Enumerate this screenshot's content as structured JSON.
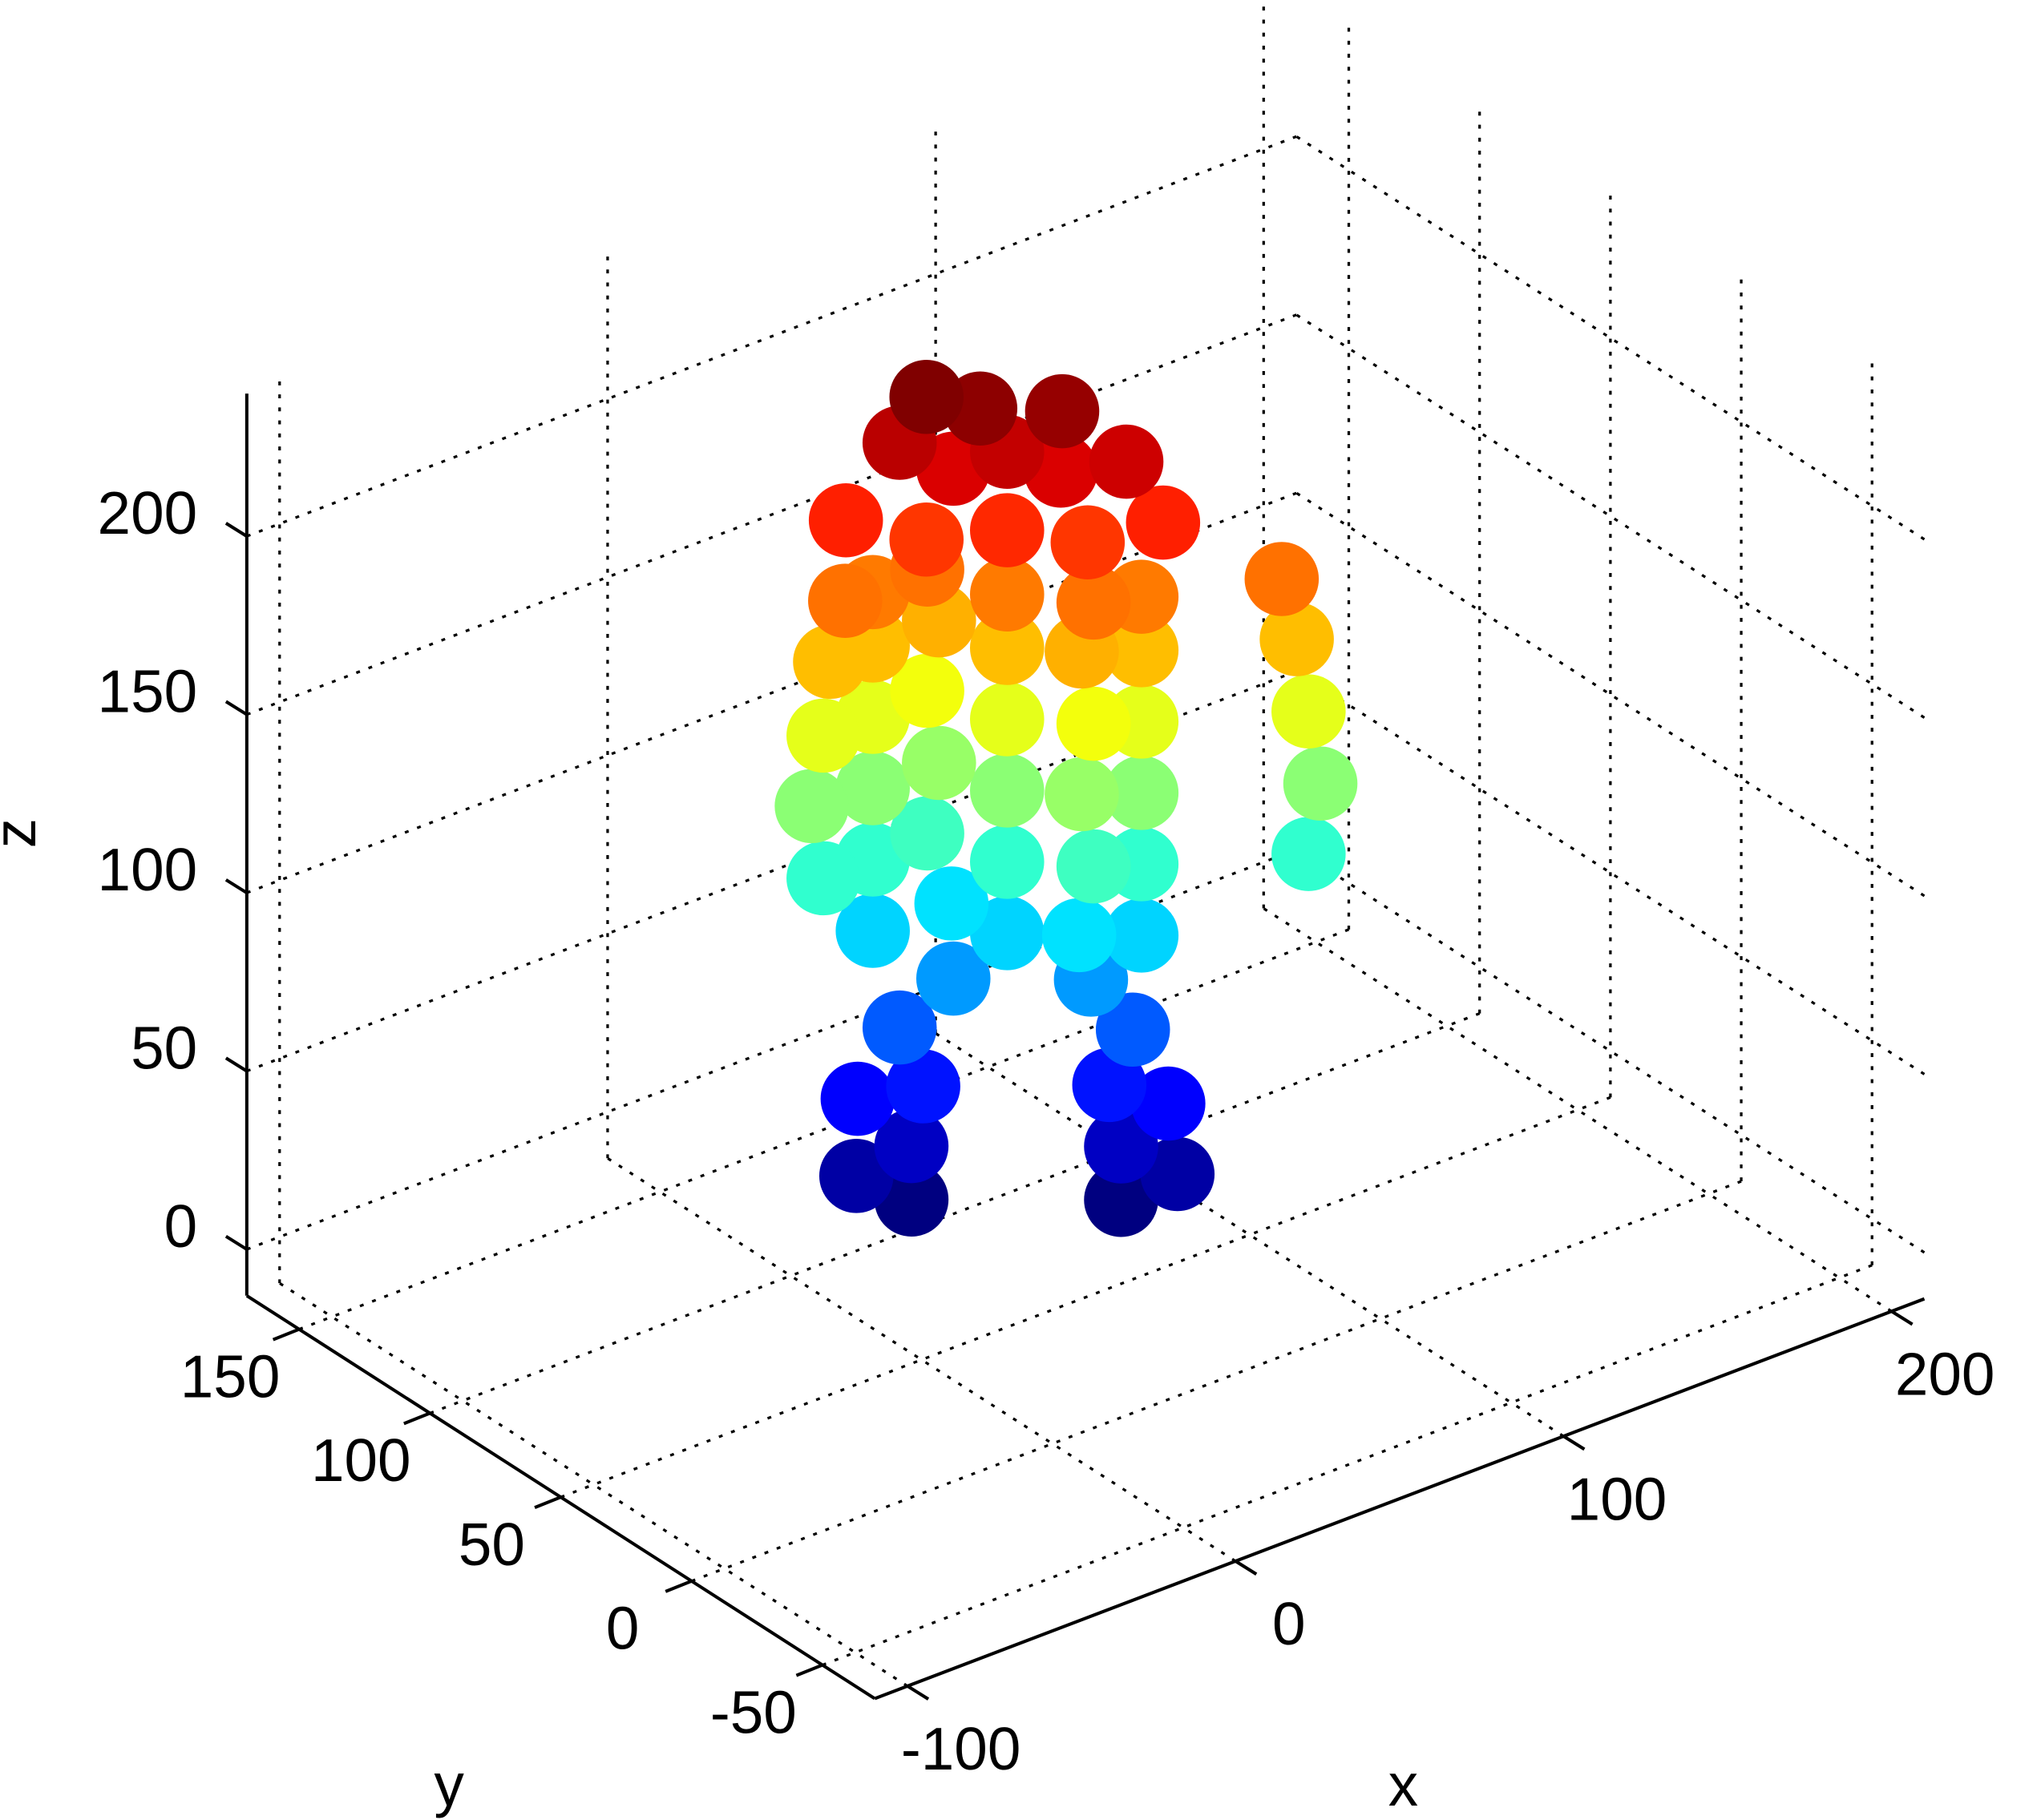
{
  "chart_data": {
    "type": "scatter3",
    "xlabel": "x",
    "ylabel": "y",
    "zlabel": "z",
    "x": [
      32,
      72,
      20,
      82,
      32,
      72,
      22,
      80,
      34,
      70,
      30,
      74,
      40,
      66,
      25,
      50,
      75,
      45,
      60,
      25,
      50,
      75,
      40,
      62,
      10,
      110,
      25,
      50,
      75,
      42,
      60,
      8,
      112,
      25,
      50,
      75,
      40,
      62,
      10,
      110,
      25,
      50,
      75,
      42,
      60,
      12,
      108,
      25,
      50,
      75,
      40,
      62,
      15,
      105,
      35,
      65,
      50,
      80,
      20,
      40,
      60,
      50,
      30,
      72,
      45,
      62,
      35
    ],
    "y": [
      94,
      64,
      100,
      55,
      94,
      64,
      102,
      56,
      92,
      66,
      96,
      62,
      88,
      68,
      100,
      80,
      60,
      95,
      65,
      100,
      80,
      60,
      98,
      62,
      100,
      40,
      100,
      80,
      60,
      96,
      64,
      102,
      38,
      100,
      80,
      60,
      98,
      62,
      100,
      40,
      100,
      80,
      60,
      96,
      64,
      100,
      42,
      100,
      80,
      60,
      98,
      62,
      98,
      44,
      92,
      68,
      80,
      58,
      104,
      88,
      72,
      80,
      96,
      62,
      84,
      74,
      92
    ],
    "z": [
      0,
      0,
      8,
      8,
      15,
      15,
      28,
      28,
      32,
      32,
      48,
      48,
      62,
      62,
      75,
      75,
      75,
      78,
      78,
      95,
      95,
      95,
      98,
      98,
      95,
      95,
      115,
      115,
      115,
      118,
      118,
      115,
      115,
      135,
      135,
      135,
      138,
      138,
      135,
      135,
      155,
      155,
      155,
      158,
      158,
      155,
      155,
      170,
      170,
      170,
      172,
      172,
      172,
      172,
      185,
      185,
      188,
      190,
      190,
      205,
      205,
      210,
      212,
      208,
      222,
      220,
      225
    ],
    "colormap": "jet",
    "xlim": [
      -110,
      210
    ],
    "ylim": [
      -70,
      170
    ],
    "zlim": [
      -13,
      240
    ],
    "xticks": [
      -100,
      0,
      100,
      200
    ],
    "yticks": [
      -50,
      0,
      50,
      100,
      150
    ],
    "zticks": [
      0,
      50,
      100,
      150,
      200
    ],
    "grid": true
  }
}
